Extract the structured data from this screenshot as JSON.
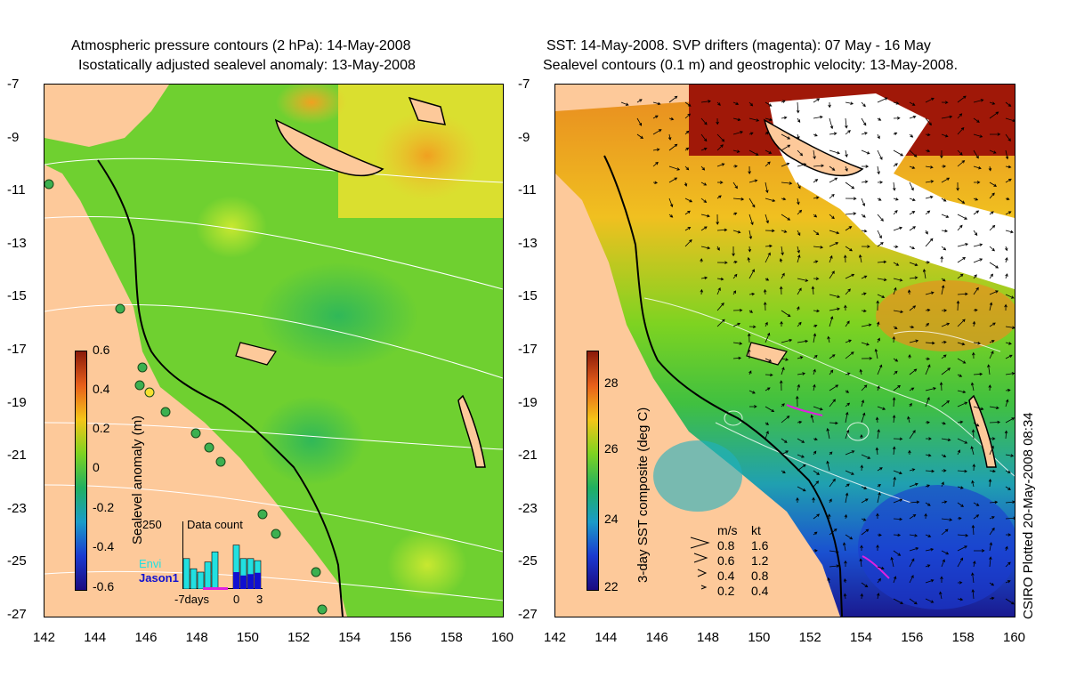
{
  "left_panel": {
    "title_line1": "Atmospheric pressure contours (2 hPa): 14-May-2008",
    "title_line2": "Isostatically adjusted sealevel anomaly: 13-May-2008",
    "colorbar": {
      "label": "Sealevel anomaly (m)",
      "ticks": [
        "0.6",
        "0.4",
        "0.2",
        "0",
        "-0.2",
        "-0.4",
        "-0.6"
      ],
      "colors": [
        "#8b1a0a",
        "#e8601a",
        "#f5c518",
        "#7ed321",
        "#20b060",
        "#1a9cc8",
        "#1a3ad0",
        "#1a0a80"
      ]
    },
    "inset": {
      "count_label": "Data count",
      "count_max": "250",
      "series_envi": "Envi",
      "series_jason": "Jason1",
      "x_ticks": [
        "-7days",
        "0",
        "3"
      ],
      "envi_color": "#22e0e0",
      "jason_color": "#1010d0",
      "envi_values": [
        0.45,
        0.3,
        0.25,
        0.4,
        0.55,
        0.0,
        0.0,
        0.65,
        0.45,
        0.45,
        0.42
      ],
      "jason_values": [
        0.0,
        0.0,
        0.0,
        0.0,
        0.0,
        0.0,
        0.0,
        0.25,
        0.2,
        0.22,
        0.24
      ]
    }
  },
  "right_panel": {
    "title_line1": "SST: 14-May-2008. SVP drifters (magenta): 07 May - 16 May",
    "title_line2": "Sealevel contours (0.1 m) and geostrophic velocity: 13-May-2008.",
    "colorbar": {
      "label": "3-day SST composite (deg C)",
      "ticks": [
        "28",
        "26",
        "24",
        "22"
      ],
      "colors": [
        "#8b1a0a",
        "#e8601a",
        "#f5c518",
        "#7ed321",
        "#20b060",
        "#1a9cc8",
        "#1a3ad0",
        "#1a0a80"
      ]
    },
    "velocity_legend": {
      "unit_ms": "m/s",
      "unit_kt": "kt",
      "rows": [
        {
          "ms": "0.8",
          "kt": "1.6"
        },
        {
          "ms": "0.6",
          "kt": "1.2"
        },
        {
          "ms": "0.4",
          "kt": "0.8"
        },
        {
          "ms": "0.2",
          "kt": "0.4"
        }
      ]
    },
    "credit": "CSIRO Plotted 20-May-2008 08:34"
  },
  "axes": {
    "lat_ticks": [
      "-7",
      "-9",
      "-11",
      "-13",
      "-15",
      "-17",
      "-19",
      "-21",
      "-23",
      "-25",
      "-27"
    ],
    "lon_ticks": [
      "142",
      "144",
      "146",
      "148",
      "150",
      "152",
      "154",
      "156",
      "158",
      "160"
    ]
  },
  "colors": {
    "land": "#fdc99a",
    "sea_green": "#6fd030",
    "coast": "#000000",
    "cloud": "#ffffff"
  }
}
